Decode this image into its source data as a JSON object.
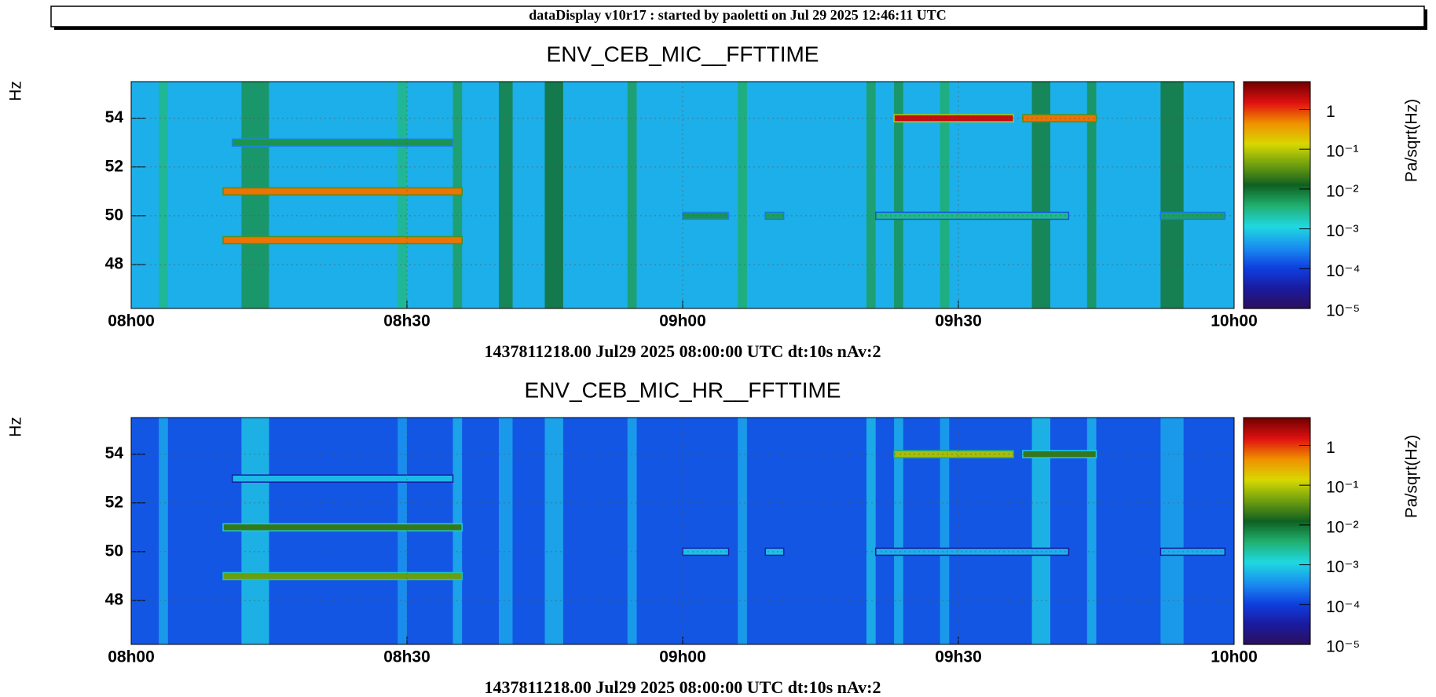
{
  "header": "dataDisplay v10r17 : started by paoletti on Jul 29 2025 12:46:11 UTC",
  "chart_data": [
    {
      "type": "heatmap",
      "title": "ENV_CEB_MIC__FFTTIME",
      "ylabel": "Hz",
      "xlabel": "1437811218.00 Jul29 2025 08:00:00 UTC dt:10s nAv:2",
      "xlim": [
        0,
        120
      ],
      "xticks": [
        {
          "value": 0,
          "label": "08h00"
        },
        {
          "value": 30,
          "label": "08h30"
        },
        {
          "value": 60,
          "label": "09h00"
        },
        {
          "value": 90,
          "label": "09h30"
        },
        {
          "value": 120,
          "label": "10h00"
        }
      ],
      "ylim": [
        46.2,
        55.5
      ],
      "yticks": [
        48,
        50,
        52,
        54
      ],
      "grid": true,
      "zlabel": "Pa/sqrt(Hz)",
      "zlim": [
        1e-05,
        5
      ],
      "zlog": true,
      "zticks": [
        {
          "value": 1,
          "label": "1"
        },
        {
          "value": 0.1,
          "label": "10⁻¹"
        },
        {
          "value": 0.01,
          "label": "10⁻²"
        },
        {
          "value": 0.001,
          "label": "10⁻³"
        },
        {
          "value": 0.0001,
          "label": "10⁻⁴"
        },
        {
          "value": 1e-05,
          "label": "10⁻⁵"
        }
      ],
      "colormap": [
        "#2b0f5a",
        "#1a1aa0",
        "#1040e0",
        "#1a90f0",
        "#20d8e0",
        "#20b070",
        "#106020",
        "#70a010",
        "#d8d800",
        "#f09000",
        "#e01010",
        "#700000"
      ],
      "background": 0.0006,
      "bands": [
        {
          "x": [
            3,
            4
          ],
          "value": 0.003
        },
        {
          "x": [
            12,
            15
          ],
          "value": 0.006
        },
        {
          "x": [
            29,
            30
          ],
          "value": 0.003
        },
        {
          "x": [
            35,
            36
          ],
          "value": 0.005
        },
        {
          "x": [
            40,
            41.5
          ],
          "value": 0.008
        },
        {
          "x": [
            45,
            47
          ],
          "value": 0.01
        },
        {
          "x": [
            54,
            55
          ],
          "value": 0.005
        },
        {
          "x": [
            66,
            67
          ],
          "value": 0.004
        },
        {
          "x": [
            80,
            81
          ],
          "value": 0.005
        },
        {
          "x": [
            83,
            84
          ],
          "value": 0.006
        },
        {
          "x": [
            88,
            89
          ],
          "value": 0.004
        },
        {
          "x": [
            98,
            100
          ],
          "value": 0.008
        },
        {
          "x": [
            104,
            105
          ],
          "value": 0.006
        },
        {
          "x": [
            112,
            114.5
          ],
          "value": 0.009
        }
      ],
      "lines": [
        {
          "y": 51,
          "x": [
            10,
            36
          ],
          "value": 0.6
        },
        {
          "y": 49,
          "x": [
            10,
            36
          ],
          "value": 0.6
        },
        {
          "y": 53,
          "x": [
            11,
            35
          ],
          "value": 0.006
        },
        {
          "y": 54,
          "x": [
            83,
            96
          ],
          "value": 2
        },
        {
          "y": 54,
          "x": [
            97,
            105
          ],
          "value": 0.6
        },
        {
          "y": 50,
          "x": [
            60,
            65
          ],
          "value": 0.006
        },
        {
          "y": 50,
          "x": [
            69,
            71
          ],
          "value": 0.005
        },
        {
          "y": 50,
          "x": [
            81,
            102
          ],
          "value": 0.003
        },
        {
          "y": 50,
          "x": [
            112,
            119
          ],
          "value": 0.005
        }
      ]
    },
    {
      "type": "heatmap",
      "title": "ENV_CEB_MIC_HR__FFTTIME",
      "ylabel": "Hz",
      "xlabel": "1437811218.00 Jul29 2025 08:00:00 UTC dt:10s nAv:2",
      "xlim": [
        0,
        120
      ],
      "xticks": [
        {
          "value": 0,
          "label": "08h00"
        },
        {
          "value": 30,
          "label": "08h30"
        },
        {
          "value": 60,
          "label": "09h00"
        },
        {
          "value": 90,
          "label": "09h30"
        },
        {
          "value": 120,
          "label": "10h00"
        }
      ],
      "ylim": [
        46.2,
        55.5
      ],
      "yticks": [
        48,
        50,
        52,
        54
      ],
      "grid": true,
      "zlabel": "Pa/sqrt(Hz)",
      "zlim": [
        1e-05,
        5
      ],
      "zlog": true,
      "zticks": [
        {
          "value": 1,
          "label": "1"
        },
        {
          "value": 0.1,
          "label": "10⁻¹"
        },
        {
          "value": 0.01,
          "label": "10⁻²"
        },
        {
          "value": 0.001,
          "label": "10⁻³"
        },
        {
          "value": 0.0001,
          "label": "10⁻⁴"
        },
        {
          "value": 1e-05,
          "label": "10⁻⁵"
        }
      ],
      "colormap": [
        "#2b0f5a",
        "#1a1aa0",
        "#1040e0",
        "#1a90f0",
        "#20d8e0",
        "#20b070",
        "#106020",
        "#70a010",
        "#d8d800",
        "#f09000",
        "#e01010",
        "#700000"
      ],
      "background": 0.00015,
      "bands": [
        {
          "x": [
            3,
            4
          ],
          "value": 0.0005
        },
        {
          "x": [
            12,
            15
          ],
          "value": 0.0008
        },
        {
          "x": [
            29,
            30
          ],
          "value": 0.0004
        },
        {
          "x": [
            35,
            36
          ],
          "value": 0.0006
        },
        {
          "x": [
            40,
            41.5
          ],
          "value": 0.0005
        },
        {
          "x": [
            45,
            47
          ],
          "value": 0.0006
        },
        {
          "x": [
            54,
            55
          ],
          "value": 0.0005
        },
        {
          "x": [
            66,
            67
          ],
          "value": 0.0005
        },
        {
          "x": [
            80,
            81
          ],
          "value": 0.0007
        },
        {
          "x": [
            83,
            84
          ],
          "value": 0.0006
        },
        {
          "x": [
            88,
            89
          ],
          "value": 0.0005
        },
        {
          "x": [
            98,
            100
          ],
          "value": 0.0008
        },
        {
          "x": [
            104,
            105
          ],
          "value": 0.0006
        },
        {
          "x": [
            112,
            114.5
          ],
          "value": 0.0005
        }
      ],
      "lines": [
        {
          "y": 51,
          "x": [
            10,
            36
          ],
          "value": 0.02
        },
        {
          "y": 49,
          "x": [
            10,
            36
          ],
          "value": 0.04
        },
        {
          "y": 53,
          "x": [
            11,
            35
          ],
          "value": 0.0007
        },
        {
          "y": 54,
          "x": [
            83,
            96
          ],
          "value": 0.08
        },
        {
          "y": 54,
          "x": [
            97,
            105
          ],
          "value": 0.02
        },
        {
          "y": 50,
          "x": [
            60,
            65
          ],
          "value": 0.0008
        },
        {
          "y": 50,
          "x": [
            69,
            71
          ],
          "value": 0.0008
        },
        {
          "y": 50,
          "x": [
            81,
            102
          ],
          "value": 0.0006
        },
        {
          "y": 50,
          "x": [
            112,
            119
          ],
          "value": 0.0006
        }
      ]
    }
  ]
}
